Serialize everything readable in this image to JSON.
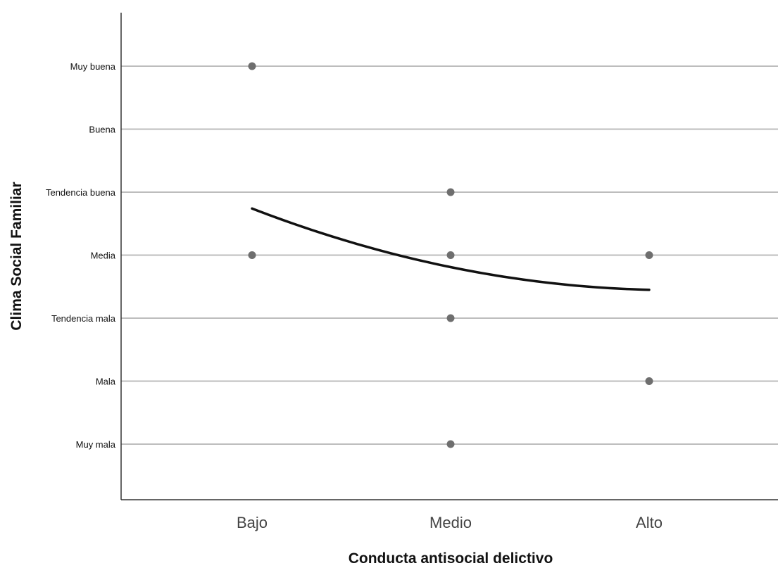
{
  "chart_data": {
    "type": "scatter",
    "xlabel": "Conducta antisocial delictivo",
    "ylabel": "Clima Social Familiar",
    "x_categories": [
      "Bajo",
      "Medio",
      "Alto"
    ],
    "y_categories": [
      "Muy mala",
      "Mala",
      "Tendencia mala",
      "Media",
      "Tendencia buena",
      "Buena",
      "Muy buena"
    ],
    "y_numeric_range": [
      1,
      7
    ],
    "ylim": [
      0.2,
      7.8
    ],
    "grid": true,
    "legend": "none",
    "points": [
      {
        "x": "Bajo",
        "y": "Muy buena"
      },
      {
        "x": "Bajo",
        "y": "Media"
      },
      {
        "x": "Medio",
        "y": "Tendencia buena"
      },
      {
        "x": "Medio",
        "y": "Media"
      },
      {
        "x": "Medio",
        "y": "Tendencia mala"
      },
      {
        "x": "Medio",
        "y": "Muy mala"
      },
      {
        "x": "Alto",
        "y": "Media"
      },
      {
        "x": "Alto",
        "y": "Mala"
      }
    ],
    "fit_line": {
      "type": "curve",
      "x": [
        "Bajo",
        "Medio",
        "Alto"
      ],
      "y": [
        4.74,
        3.81,
        3.45
      ]
    },
    "colors": {
      "points": "#6e6e6e",
      "fit_line": "#111111",
      "gridlines": "#bdbdbd",
      "axis": "#333333"
    }
  }
}
